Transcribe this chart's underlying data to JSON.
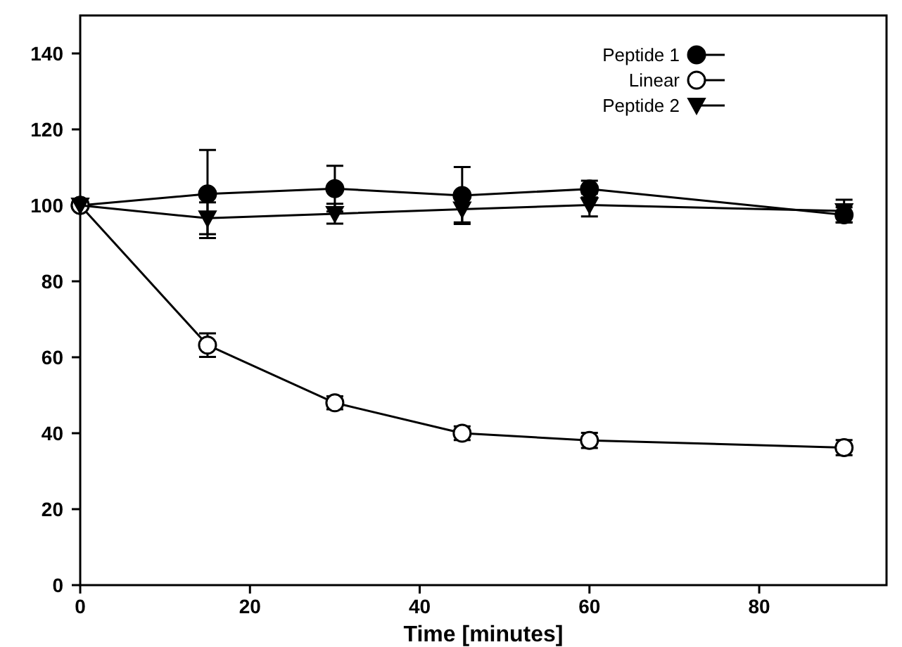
{
  "chart_data": {
    "type": "line",
    "xlabel": "Time [minutes]",
    "x": [
      0,
      15,
      30,
      45,
      60,
      90
    ],
    "xlim": [
      0,
      95
    ],
    "xticks": [
      0,
      20,
      40,
      60,
      80
    ],
    "ylim": [
      0,
      150
    ],
    "yticks": [
      0,
      20,
      40,
      60,
      80,
      100,
      120,
      140
    ],
    "legend": "top right",
    "grid": false,
    "line_style": "solid",
    "series": [
      {
        "name": "Peptide 1",
        "color": "#000000",
        "marker": "circle",
        "values": [
          100,
          103,
          104.4,
          102.6,
          104.3,
          97.5
        ],
        "errors": [
          null,
          11.6,
          6,
          7.5,
          2.2,
          2
        ]
      },
      {
        "name": "Linear",
        "color": "#ffffff",
        "marker": "circle",
        "values": [
          100,
          63.2,
          48,
          40,
          38.1,
          36.2
        ],
        "errors": [
          null,
          3.1,
          1.7,
          1.8,
          2,
          2
        ]
      },
      {
        "name": "Peptide 2",
        "color": "#000000",
        "marker": "triangle",
        "values": [
          100,
          96.6,
          97.8,
          99,
          100.1,
          98.5
        ],
        "errors": [
          null,
          4.2,
          2.6,
          3.5,
          3,
          3
        ]
      }
    ]
  }
}
